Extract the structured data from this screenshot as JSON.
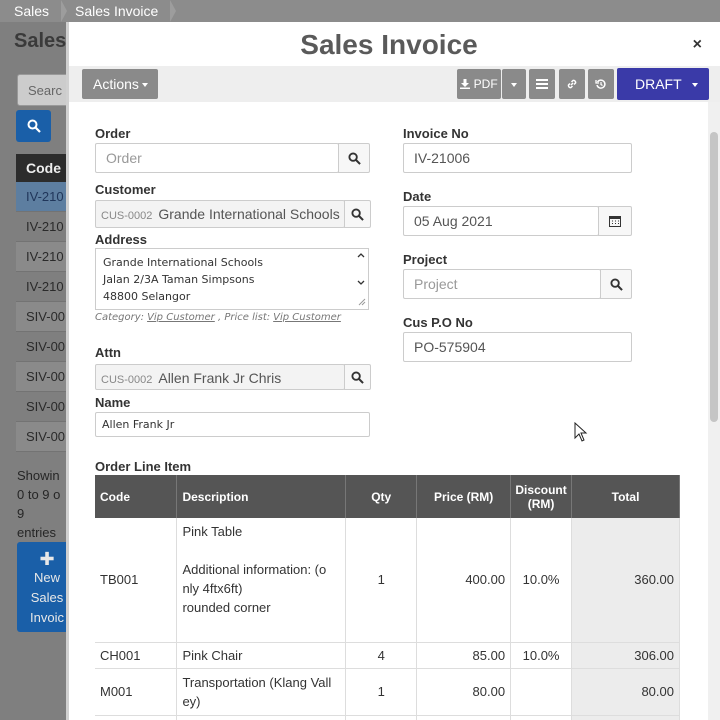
{
  "breadcrumb": [
    "Sales",
    "Sales Invoice"
  ],
  "background": {
    "title": "Sales",
    "search_placeholder": "Searc",
    "code_header": "Code",
    "codes": [
      "IV-210",
      "IV-210",
      "IV-210",
      "IV-210",
      "SIV-00",
      "SIV-00",
      "SIV-00",
      "SIV-00",
      "SIV-00"
    ],
    "showing": "Showin",
    "showing_range": "0 to 9 o",
    "showing_count": "9",
    "showing_entries": "entries",
    "new_line1": "New",
    "new_line2": "Sales",
    "new_line3": "Invoic"
  },
  "modal": {
    "title": "Sales Invoice",
    "close": "×"
  },
  "toolbar": {
    "actions": "Actions",
    "pdf": "PDF",
    "draft": "DRAFT"
  },
  "form": {
    "order_label": "Order",
    "order_placeholder": "Order",
    "customer_label": "Customer",
    "customer_code": "CUS-0002",
    "customer_name": "Grande International Schools",
    "address_label": "Address",
    "address_lines": [
      "Grande International Schools",
      "Jalan 2/3A Taman Simpsons",
      "48800 Selangor"
    ],
    "category_label": "Category:",
    "category_value": "Vip Customer",
    "pricelist_label": ", Price list:",
    "pricelist_value": "Vip Customer",
    "attn_label": "Attn",
    "attn_code": "CUS-0002",
    "attn_name": "Allen Frank Jr  Chris",
    "name_label": "Name",
    "name_value": "Allen Frank Jr",
    "invoice_no_label": "Invoice No",
    "invoice_no": "IV-21006",
    "date_label": "Date",
    "date": "05 Aug 2021",
    "project_label": "Project",
    "project_placeholder": "Project",
    "cuspo_label": "Cus P.O No",
    "cuspo": "PO-575904"
  },
  "order_lines": {
    "title": "Order Line Item",
    "headers": {
      "code": "Code",
      "description": "Description",
      "qty": "Qty",
      "price": "Price (RM)",
      "discount": "Discount (RM)",
      "total": "Total"
    },
    "rows": [
      {
        "code": "TB001",
        "desc1": "Pink Table",
        "desc2": "Additional information: (o",
        "desc3": "nly 4ftx6ft)",
        "desc4": "rounded corner",
        "qty": "1",
        "price": "400.00",
        "discount": "10.0%",
        "total": "360.00"
      },
      {
        "code": "CH001",
        "desc1": "Pink Chair",
        "qty": "4",
        "price": "85.00",
        "discount": "10.0%",
        "total": "306.00"
      },
      {
        "code": "M001",
        "desc1": "Transportation (Klang Vall",
        "desc2": "ey)",
        "qty": "1",
        "price": "80.00",
        "discount": "",
        "total": "80.00"
      }
    ]
  }
}
